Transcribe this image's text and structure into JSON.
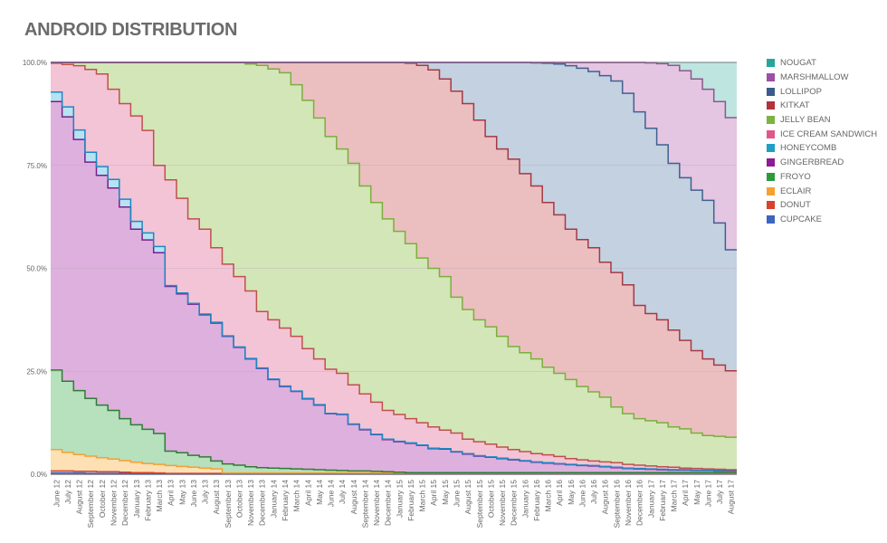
{
  "title": "ANDROID DISTRIBUTION",
  "legend": [
    {
      "label": "NOUGAT",
      "color": "#26a69a"
    },
    {
      "label": "MARSHMALLOW",
      "color": "#9c4fa8"
    },
    {
      "label": "LOLLIPOP",
      "color": "#3b5b8c"
    },
    {
      "label": "KITKAT",
      "color": "#b0343c"
    },
    {
      "label": "JELLY BEAN",
      "color": "#7cb342"
    },
    {
      "label": "ICE CREAM SANDWICH",
      "color": "#e0578a"
    },
    {
      "label": "HONEYCOMB",
      "color": "#1e9fc4"
    },
    {
      "label": "GINGERBREAD",
      "color": "#8e1b96"
    },
    {
      "label": "FROYO",
      "color": "#2e9a3e"
    },
    {
      "label": "ECLAIR",
      "color": "#f5a033"
    },
    {
      "label": "DONUT",
      "color": "#d9412e"
    },
    {
      "label": "CUPCAKE",
      "color": "#3d64c0"
    }
  ],
  "chart_data": {
    "type": "area",
    "stacked": true,
    "step": true,
    "title": "ANDROID DISTRIBUTION",
    "xlabel": "",
    "ylabel": "",
    "ylim": [
      0,
      100
    ],
    "yticks": [
      "0.0%",
      "25.0%",
      "50.0%",
      "75.0%",
      "100.0%"
    ],
    "grid": true,
    "legend_position": "right",
    "categories": [
      "June 12",
      "July 12",
      "August 12",
      "September 12",
      "October 12",
      "November 12",
      "December 12",
      "January 13",
      "February 13",
      "March 13",
      "April 13",
      "May 13",
      "June 13",
      "July 13",
      "August 13",
      "September 13",
      "October 13",
      "November 13",
      "December 13",
      "January 14",
      "February 14",
      "March 14",
      "April 14",
      "May 14",
      "June 14",
      "July 14",
      "August 14",
      "September 14",
      "November 14",
      "December 14",
      "January 15",
      "February 15",
      "March 15",
      "April 15",
      "May 15",
      "June 15",
      "August 15",
      "September 15",
      "October 15",
      "November 15",
      "December 15",
      "January 16",
      "February 16",
      "March 16",
      "April 16",
      "May 16",
      "June 16",
      "July 16",
      "August 16",
      "September 16",
      "November 16",
      "December 16",
      "January 17",
      "February 17",
      "March 17",
      "April 17",
      "May 17",
      "June 17",
      "July 17",
      "August 17"
    ],
    "cumulative_note": "values below are cumulative top boundaries (%) from bottom series upward",
    "series": [
      {
        "name": "CUPCAKE",
        "fill": "#c5cde8",
        "line": "#3d64c0",
        "values": [
          0.3,
          0.3,
          0.3,
          0.2,
          0.2,
          0.2,
          0.2,
          0.1,
          0.1,
          0.1,
          0.1,
          0.1,
          0.1,
          0.1,
          0.1,
          0.1,
          0.1,
          0.1,
          0.1,
          0.1,
          0.1,
          0.1,
          0.1,
          0.1,
          0.1,
          0.1,
          0.1,
          0.1,
          0.1,
          0.1,
          0.1,
          0.1,
          0.1,
          0.1,
          0.1,
          0.1,
          0.1,
          0.1,
          0.1,
          0.1,
          0.1,
          0.1,
          0.1,
          0.1,
          0.1,
          0.1,
          0.1,
          0.1,
          0.1,
          0.1,
          0.1,
          0.1,
          0.1,
          0.1,
          0.1,
          0.1,
          0.1,
          0.1,
          0.1,
          0.1
        ]
      },
      {
        "name": "DONUT",
        "fill": "#f3c9c2",
        "line": "#d9412e",
        "values": [
          0.8,
          0.8,
          0.7,
          0.7,
          0.6,
          0.6,
          0.5,
          0.4,
          0.4,
          0.3,
          0.2,
          0.2,
          0.2,
          0.2,
          0.2,
          0.2,
          0.2,
          0.2,
          0.2,
          0.2,
          0.2,
          0.2,
          0.2,
          0.2,
          0.2,
          0.2,
          0.2,
          0.2,
          0.2,
          0.2,
          0.2,
          0.2,
          0.2,
          0.2,
          0.2,
          0.2,
          0.2,
          0.2,
          0.2,
          0.2,
          0.2,
          0.2,
          0.2,
          0.2,
          0.2,
          0.2,
          0.2,
          0.2,
          0.2,
          0.2,
          0.2,
          0.2,
          0.2,
          0.2,
          0.2,
          0.2,
          0.2,
          0.2,
          0.2,
          0.2
        ]
      },
      {
        "name": "ECLAIR",
        "fill": "#fde0b3",
        "line": "#f5a033",
        "values": [
          6.0,
          5.3,
          4.8,
          4.4,
          4.0,
          3.7,
          3.3,
          2.9,
          2.6,
          2.4,
          2.1,
          1.9,
          1.7,
          1.5,
          1.3,
          0.3,
          0.3,
          0.3,
          0.3,
          0.3,
          0.3,
          0.3,
          0.3,
          0.3,
          0.3,
          0.3,
          0.3,
          0.3,
          0.3,
          0.3,
          0.3,
          0.3,
          0.3,
          0.3,
          0.3,
          0.3,
          0.3,
          0.3,
          0.3,
          0.3,
          0.3,
          0.3,
          0.3,
          0.3,
          0.3,
          0.3,
          0.3,
          0.3,
          0.3,
          0.3,
          0.3,
          0.3,
          0.3,
          0.3,
          0.3,
          0.3,
          0.3,
          0.3,
          0.3,
          0.3
        ]
      },
      {
        "name": "FROYO",
        "fill": "#b7e0bd",
        "line": "#2e7d32",
        "values": [
          25.3,
          22.6,
          20.3,
          18.4,
          16.8,
          15.5,
          13.5,
          12.0,
          10.9,
          9.9,
          5.6,
          5.2,
          4.6,
          4.2,
          3.2,
          2.5,
          2.2,
          1.8,
          1.6,
          1.5,
          1.4,
          1.3,
          1.2,
          1.1,
          1.0,
          0.9,
          0.8,
          0.8,
          0.7,
          0.6,
          0.5,
          0.4,
          0.4,
          0.4,
          0.4,
          0.4,
          0.4,
          0.4,
          0.4,
          0.4,
          0.4,
          0.4,
          0.4,
          0.4,
          0.4,
          0.4,
          0.4,
          0.4,
          0.4,
          0.4,
          0.4,
          0.4,
          0.4,
          0.4,
          0.4,
          0.4,
          0.4,
          0.4,
          0.4,
          0.4
        ]
      },
      {
        "name": "GINGERBREAD",
        "fill": "#ddb0de",
        "line": "#7b1f8a",
        "values": [
          90.5,
          86.8,
          81.3,
          75.8,
          72.6,
          69.5,
          64.9,
          59.5,
          56.9,
          53.8,
          45.6,
          43.8,
          41.3,
          38.7,
          36.7,
          33.5,
          30.8,
          28.0,
          25.7,
          23.0,
          21.3,
          20.1,
          18.3,
          16.8,
          14.7,
          14.5,
          12.1,
          10.8,
          9.6,
          8.4,
          7.9,
          7.5,
          7.0,
          6.2,
          6.1,
          5.4,
          4.9,
          4.4,
          4.1,
          3.8,
          3.5,
          3.2,
          2.9,
          2.7,
          2.5,
          2.3,
          2.1,
          2.0,
          1.8,
          1.6,
          1.4,
          1.3,
          1.2,
          1.1,
          1.0,
          1.0,
          0.9,
          0.9,
          0.8,
          0.8
        ]
      },
      {
        "name": "HONEYCOMB",
        "fill": "#b5e3f2",
        "line": "#1e88c4",
        "values": [
          92.8,
          89.2,
          83.6,
          78.2,
          74.7,
          71.6,
          66.8,
          61.4,
          58.6,
          55.3,
          45.8,
          44.0,
          41.5,
          38.9,
          36.9,
          33.6,
          30.9,
          28.1,
          25.8,
          23.1,
          21.4,
          20.2,
          18.4,
          16.9,
          14.8,
          14.6,
          12.2,
          10.9,
          9.7,
          8.5,
          8.0,
          7.6,
          7.1,
          6.3,
          6.2,
          5.5,
          5.0,
          4.5,
          4.2,
          3.9,
          3.6,
          3.3,
          3.0,
          2.8,
          2.6,
          2.4,
          2.2,
          2.1,
          1.9,
          1.7,
          1.5,
          1.4,
          1.3,
          1.2,
          1.1,
          1.1,
          1.0,
          1.0,
          0.9,
          0.9
        ]
      },
      {
        "name": "ICE CREAM SANDWICH",
        "fill": "#f3c4d6",
        "line": "#c0504d",
        "values": [
          99.8,
          99.5,
          99.2,
          98.3,
          97.2,
          93.5,
          90.0,
          87.0,
          83.5,
          75.0,
          71.5,
          67.0,
          62.0,
          59.5,
          55.0,
          51.0,
          48.0,
          44.5,
          39.5,
          37.5,
          35.5,
          33.5,
          30.5,
          28.0,
          25.5,
          24.5,
          21.7,
          19.5,
          17.5,
          15.5,
          14.5,
          13.5,
          12.5,
          11.5,
          10.7,
          10.0,
          8.5,
          7.9,
          7.3,
          6.6,
          6.0,
          5.5,
          5.0,
          4.7,
          4.3,
          3.8,
          3.5,
          3.2,
          3.0,
          2.8,
          2.4,
          2.2,
          2.0,
          1.8,
          1.7,
          1.5,
          1.4,
          1.3,
          1.2,
          1.1
        ]
      },
      {
        "name": "JELLY BEAN",
        "fill": "#d3e6b8",
        "line": "#7cae3e",
        "values": [
          100,
          100,
          100,
          100,
          100,
          100,
          100,
          100,
          100,
          100,
          100,
          100,
          100,
          100,
          100,
          100,
          100,
          99.6,
          99.3,
          98.4,
          97.5,
          94.6,
          90.8,
          86.5,
          82.0,
          79.0,
          75.5,
          70.0,
          66.0,
          62.0,
          59.0,
          56.0,
          52.5,
          50.0,
          48.0,
          43.0,
          40.0,
          37.5,
          35.8,
          33.5,
          31.0,
          29.5,
          28.0,
          26.0,
          24.5,
          23.0,
          21.3,
          20.0,
          18.7,
          16.3,
          14.7,
          13.5,
          13.0,
          12.5,
          11.5,
          11.0,
          10.0,
          9.4,
          9.2,
          9.0
        ]
      },
      {
        "name": "KITKAT",
        "fill": "#ebbfc0",
        "line": "#a33a45",
        "values": [
          100,
          100,
          100,
          100,
          100,
          100,
          100,
          100,
          100,
          100,
          100,
          100,
          100,
          100,
          100,
          100,
          100,
          100,
          100,
          100,
          100,
          100,
          100,
          100,
          100,
          100,
          100,
          100,
          100,
          100,
          100,
          99.8,
          99.3,
          98.2,
          96.0,
          93.0,
          90.0,
          86.0,
          82.0,
          79.0,
          76.5,
          73.0,
          70.0,
          66.0,
          63.0,
          59.5,
          57.0,
          55.0,
          51.5,
          49.0,
          46.0,
          41.0,
          39.0,
          37.5,
          35.0,
          32.5,
          30.0,
          28.0,
          26.5,
          25.1
        ]
      },
      {
        "name": "LOLLIPOP",
        "fill": "#c3d1e0",
        "line": "#41608f",
        "values": [
          100,
          100,
          100,
          100,
          100,
          100,
          100,
          100,
          100,
          100,
          100,
          100,
          100,
          100,
          100,
          100,
          100,
          100,
          100,
          100,
          100,
          100,
          100,
          100,
          100,
          100,
          100,
          100,
          100,
          100,
          100,
          100,
          100,
          100,
          100,
          100,
          100,
          100,
          100,
          100,
          100,
          100,
          99.9,
          99.8,
          99.6,
          99.2,
          98.6,
          97.8,
          96.8,
          95.5,
          92.5,
          88.0,
          84.0,
          80.0,
          75.5,
          72.0,
          69.0,
          66.5,
          61.0,
          54.5
        ]
      },
      {
        "name": "MARSHMALLOW",
        "fill": "#e4c5e2",
        "line": "#8a5a8a",
        "values": [
          100,
          100,
          100,
          100,
          100,
          100,
          100,
          100,
          100,
          100,
          100,
          100,
          100,
          100,
          100,
          100,
          100,
          100,
          100,
          100,
          100,
          100,
          100,
          100,
          100,
          100,
          100,
          100,
          100,
          100,
          100,
          100,
          100,
          100,
          100,
          100,
          100,
          100,
          100,
          100,
          100,
          100,
          100,
          100,
          100,
          100,
          100,
          100,
          100,
          100,
          100,
          100,
          99.9,
          99.7,
          99.3,
          98.0,
          96.0,
          93.5,
          90.5,
          86.6
        ]
      },
      {
        "name": "NOUGAT",
        "fill": "#bfe5e0",
        "line": "#7a9a9a",
        "values": [
          100,
          100,
          100,
          100,
          100,
          100,
          100,
          100,
          100,
          100,
          100,
          100,
          100,
          100,
          100,
          100,
          100,
          100,
          100,
          100,
          100,
          100,
          100,
          100,
          100,
          100,
          100,
          100,
          100,
          100,
          100,
          100,
          100,
          100,
          100,
          100,
          100,
          100,
          100,
          100,
          100,
          100,
          100,
          100,
          100,
          100,
          100,
          100,
          100,
          100,
          100,
          100,
          100,
          100,
          100,
          100,
          100,
          100,
          100,
          100
        ]
      }
    ]
  }
}
